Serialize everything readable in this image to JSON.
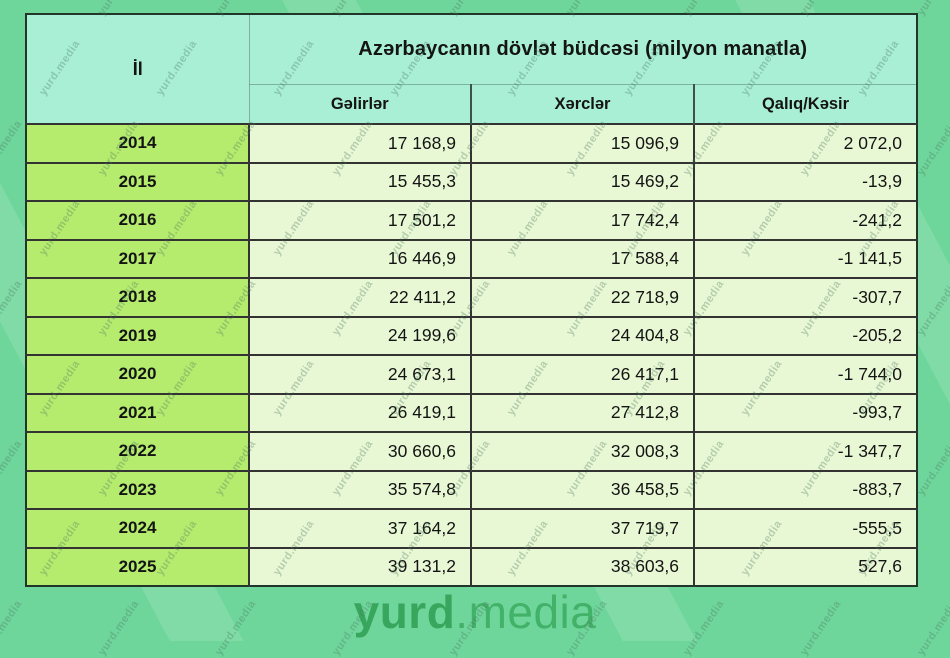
{
  "table": {
    "year_header": "İl",
    "title": "Azərbaycanın dövlət büdcəsi (milyon manatla)",
    "columns": {
      "gelirler": "Gəlirlər",
      "xercler": "Xərclər",
      "qaliq": "Qalıq/Kəsir"
    },
    "rows": [
      {
        "year": "2014",
        "gelirler": "17 168,9",
        "xercler": "15 096,9",
        "qaliq": "2 072,0"
      },
      {
        "year": "2015",
        "gelirler": "15 455,3",
        "xercler": "15 469,2",
        "qaliq": "-13,9"
      },
      {
        "year": "2016",
        "gelirler": "17 501,2",
        "xercler": "17 742,4",
        "qaliq": "-241,2"
      },
      {
        "year": "2017",
        "gelirler": "16 446,9",
        "xercler": "17 588,4",
        "qaliq": "-1 141,5"
      },
      {
        "year": "2018",
        "gelirler": "22 411,2",
        "xercler": "22 718,9",
        "qaliq": "-307,7"
      },
      {
        "year": "2019",
        "gelirler": "24 199,6",
        "xercler": "24 404,8",
        "qaliq": "-205,2"
      },
      {
        "year": "2020",
        "gelirler": "24 673,1",
        "xercler": "26 417,1",
        "qaliq": "-1 744,0"
      },
      {
        "year": "2021",
        "gelirler": "26 419,1",
        "xercler": "27 412,8",
        "qaliq": "-993,7"
      },
      {
        "year": "2022",
        "gelirler": "30 660,6",
        "xercler": "32 008,3",
        "qaliq": "-1 347,7"
      },
      {
        "year": "2023",
        "gelirler": "35 574,8",
        "xercler": "36 458,5",
        "qaliq": "-883,7"
      },
      {
        "year": "2024",
        "gelirler": "37 164,2",
        "xercler": "37 719,7",
        "qaliq": "-555,5"
      },
      {
        "year": "2025",
        "gelirler": "39 131,2",
        "xercler": "38 603,6",
        "qaliq": "527,6"
      }
    ]
  },
  "chart_data": {
    "type": "table",
    "title": "Azərbaycanın dövlət büdcəsi (milyon manatla)",
    "columns": [
      "İl",
      "Gəlirlər",
      "Xərclər",
      "Qalıq/Kəsir"
    ],
    "unit": "milyon manat",
    "rows": [
      [
        2014,
        17168.9,
        15096.9,
        2072.0
      ],
      [
        2015,
        15455.3,
        15469.2,
        -13.9
      ],
      [
        2016,
        17501.2,
        17742.4,
        -241.2
      ],
      [
        2017,
        16446.9,
        17588.4,
        -1141.5
      ],
      [
        2018,
        22411.2,
        22718.9,
        -307.7
      ],
      [
        2019,
        24199.6,
        24404.8,
        -205.2
      ],
      [
        2020,
        24673.1,
        26417.1,
        -1744.0
      ],
      [
        2021,
        26419.1,
        27412.8,
        -993.7
      ],
      [
        2022,
        30660.6,
        32008.3,
        -1347.7
      ],
      [
        2023,
        35574.8,
        36458.5,
        -883.7
      ],
      [
        2024,
        37164.2,
        37719.7,
        -555.5
      ],
      [
        2025,
        39131.2,
        38603.6,
        527.6
      ]
    ]
  },
  "watermark": {
    "text": "yurd.media"
  },
  "footer": {
    "brand_bold": "yurd",
    "brand_regular": ".media"
  },
  "colors": {
    "background": "#6fd69b",
    "header_cell": "#a8efd6",
    "year_cell": "#b5ec6e",
    "data_cell": "#e9f8d4",
    "grid_line": "#333333",
    "logo_green": "#3aab60"
  }
}
